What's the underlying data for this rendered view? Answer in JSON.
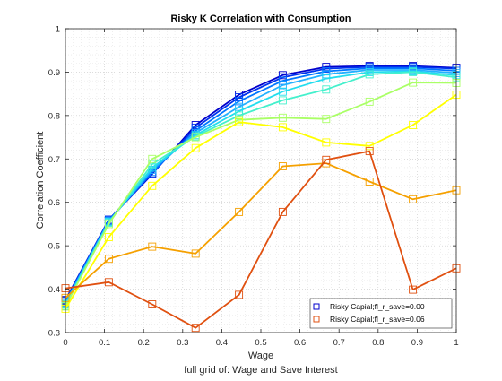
{
  "chart_data": {
    "type": "line",
    "title": "Risky K Correlation with Consumption",
    "xlabel": "Wage",
    "ylabel": "Correlation Coefficient",
    "caption": "full grid of: Wage and Save Interest",
    "xlim": [
      0,
      1
    ],
    "ylim": [
      0.3,
      1
    ],
    "xticks": [
      0,
      0.1,
      0.2,
      0.3,
      0.4,
      0.5,
      0.6,
      0.7,
      0.8,
      0.9,
      1
    ],
    "xtick_labels": [
      "0",
      "0.1",
      "0.2",
      "0.3",
      "0.4",
      "0.5",
      "0.6",
      "0.7",
      "0.8",
      "0.9",
      "1"
    ],
    "yticks": [
      0.3,
      0.4,
      0.5,
      0.6,
      0.7,
      0.8,
      0.9,
      1
    ],
    "ytick_labels": [
      "0.3",
      "0.4",
      "0.5",
      "0.6",
      "0.7",
      "0.8",
      "0.9",
      "1"
    ],
    "grid": "on (major and minor, dotted)",
    "legend_location": "bottom-right",
    "x": [
      0,
      0.111,
      0.222,
      0.333,
      0.444,
      0.556,
      0.667,
      0.778,
      0.889,
      1
    ],
    "series": [
      {
        "name": "Risky Capial;fl_r_save=0.00",
        "color": "#0000cc",
        "values": [
          0.375,
          0.56,
          0.665,
          0.778,
          0.848,
          0.893,
          0.912,
          0.914,
          0.914,
          0.91
        ]
      },
      {
        "name": "",
        "color": "#0033ee",
        "values": [
          0.373,
          0.56,
          0.667,
          0.772,
          0.842,
          0.888,
          0.908,
          0.912,
          0.912,
          0.908
        ]
      },
      {
        "name": "",
        "color": "#0077ff",
        "values": [
          0.37,
          0.558,
          0.67,
          0.765,
          0.833,
          0.88,
          0.902,
          0.909,
          0.909,
          0.903
        ]
      },
      {
        "name": "",
        "color": "#22b0ff",
        "values": [
          0.368,
          0.556,
          0.675,
          0.76,
          0.82,
          0.87,
          0.895,
          0.905,
          0.905,
          0.898
        ]
      },
      {
        "name": "",
        "color": "#22ddee",
        "values": [
          0.365,
          0.555,
          0.68,
          0.755,
          0.81,
          0.855,
          0.885,
          0.9,
          0.902,
          0.893
        ]
      },
      {
        "name": "",
        "color": "#44f0cc",
        "values": [
          0.362,
          0.553,
          0.688,
          0.752,
          0.8,
          0.835,
          0.86,
          0.895,
          0.9,
          0.888
        ]
      },
      {
        "name": "",
        "color": "#aaff66",
        "values": [
          0.36,
          0.55,
          0.7,
          0.75,
          0.79,
          0.795,
          0.792,
          0.832,
          0.876,
          0.875
        ]
      },
      {
        "name": "",
        "color": "#ffff00",
        "values": [
          0.355,
          0.52,
          0.638,
          0.725,
          0.785,
          0.773,
          0.738,
          0.73,
          0.778,
          0.848
        ]
      },
      {
        "name": "",
        "color": "#f5a000",
        "values": [
          0.38,
          0.47,
          0.498,
          0.482,
          0.578,
          0.683,
          0.69,
          0.648,
          0.607,
          0.628
        ]
      },
      {
        "name": "Risky Capial;fl_r_save=0.06",
        "color": "#e05010",
        "values": [
          0.402,
          0.416,
          0.365,
          0.311,
          0.387,
          0.578,
          0.698,
          0.718,
          0.399,
          0.448
        ]
      }
    ]
  }
}
